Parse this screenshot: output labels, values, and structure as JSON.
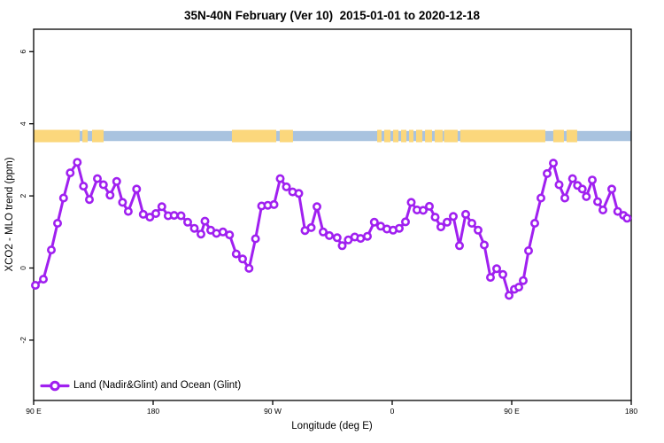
{
  "chart_data": {
    "type": "line",
    "title": "35N-40N February (Ver 10)  2015-01-01 to 2020-12-18",
    "xlabel": "Longitude (deg E)",
    "ylabel": "XCO2 - MLO trend (ppm)",
    "x_axis": {
      "tick_labels": [
        "90 E",
        "180",
        "90 W",
        "0",
        "90 E",
        "180"
      ],
      "tick_offsets_deg": [
        0,
        90,
        180,
        270,
        360,
        450
      ],
      "range_deg": [
        0,
        450
      ]
    },
    "y_axis": {
      "ticks": [
        -2,
        0,
        2,
        4,
        6
      ],
      "range": [
        -3.7,
        6.6
      ],
      "grid": false
    },
    "legend": {
      "label": "Land (Nadir&Glint) and Ocean (Glint)",
      "position": "bottom-left"
    },
    "series": [
      {
        "name": "Land (Nadir&Glint) and Ocean (Glint)",
        "color": "#a020f0",
        "marker": "open-circle",
        "x_offset_deg": [
          1.3,
          7.3,
          13.3,
          18,
          22.5,
          27.5,
          32.9,
          37.5,
          42,
          48,
          52.5,
          57.5,
          62.5,
          66.9,
          71.3,
          77.5,
          82.5,
          87.5,
          92,
          96.5,
          101.3,
          105.8,
          111,
          116,
          121,
          126,
          129,
          133.3,
          137.7,
          142.5,
          147.5,
          152.5,
          157.3,
          162.2,
          167.1,
          171.7,
          176.3,
          181,
          185.7,
          190.3,
          195,
          199.7,
          204.3,
          209,
          213.3,
          218,
          222.7,
          228.5,
          232.3,
          236.9,
          241.8,
          246.2,
          251.3,
          256.5,
          261.3,
          266,
          270.7,
          275.3,
          280,
          284.3,
          288.7,
          293.3,
          298,
          302.3,
          306.7,
          311.3,
          316,
          320.7,
          325.3,
          330,
          334.7,
          339.3,
          344,
          348.7,
          353.3,
          358,
          362,
          365.3,
          368.7,
          372.7,
          377.3,
          382,
          386.7,
          391.3,
          395.7,
          400,
          405.8,
          409.5,
          413.1,
          416.2,
          420.7,
          424.7,
          428.7,
          435.3,
          439.8,
          444.2,
          446.9
        ],
        "values": [
          -0.48,
          -0.31,
          0.5,
          1.24,
          1.94,
          2.64,
          2.93,
          2.27,
          1.9,
          2.48,
          2.31,
          2.02,
          2.4,
          1.82,
          1.57,
          2.19,
          1.49,
          1.41,
          1.51,
          1.7,
          1.45,
          1.46,
          1.45,
          1.27,
          1.1,
          0.94,
          1.3,
          1.05,
          0.96,
          1.0,
          0.92,
          0.39,
          0.25,
          -0.01,
          0.81,
          1.72,
          1.74,
          1.76,
          2.48,
          2.25,
          2.11,
          2.07,
          1.04,
          1.12,
          1.7,
          1.0,
          0.9,
          0.84,
          0.62,
          0.78,
          0.86,
          0.82,
          0.88,
          1.27,
          1.16,
          1.08,
          1.05,
          1.1,
          1.28,
          1.82,
          1.61,
          1.6,
          1.71,
          1.41,
          1.14,
          1.27,
          1.43,
          0.62,
          1.49,
          1.24,
          1.05,
          0.64,
          -0.26,
          -0.02,
          -0.18,
          -0.76,
          -0.59,
          -0.53,
          -0.35,
          0.48,
          1.24,
          1.94,
          2.62,
          2.91,
          2.31,
          1.94,
          2.48,
          2.29,
          2.19,
          1.98,
          2.44,
          1.84,
          1.61,
          2.19,
          1.57,
          1.46,
          1.38
        ]
      }
    ],
    "map_strip": {
      "description": "land-ocean strip along 35N-40N",
      "y_center_ppm": 3.66,
      "ocean_color": "#a9c3df",
      "land_color": "#fbd77c",
      "land_segments_deg": [
        [
          0,
          34.7
        ],
        [
          36.7,
          40.7
        ],
        [
          44,
          52.7
        ],
        [
          149.3,
          182.7
        ],
        [
          185.3,
          195.3
        ],
        [
          258.7,
          262
        ],
        [
          264,
          268.7
        ],
        [
          270.7,
          274.7
        ],
        [
          276.7,
          280.7
        ],
        [
          282.7,
          286
        ],
        [
          288,
          292.7
        ],
        [
          294.7,
          300
        ],
        [
          302,
          308
        ],
        [
          309,
          319.3
        ],
        [
          321.3,
          385.3
        ],
        [
          391.3,
          399.3
        ],
        [
          401.3,
          409.3
        ]
      ]
    }
  }
}
